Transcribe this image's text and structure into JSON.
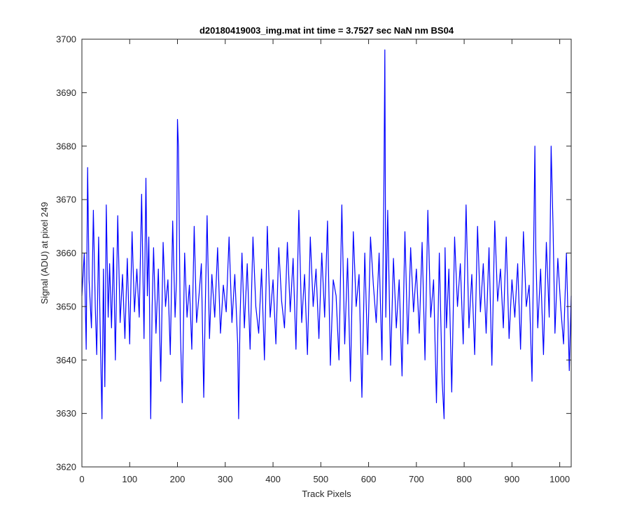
{
  "chart_data": {
    "type": "line",
    "title": "d20180419003_img.mat int time = 3.7527 sec  NaN nm BS04",
    "xlabel": "Track Pixels",
    "ylabel": "Signal (ADU) at pixel 249",
    "xlim": [
      0,
      1024
    ],
    "ylim": [
      3620,
      3700
    ],
    "xticks": [
      0,
      100,
      200,
      300,
      400,
      500,
      600,
      700,
      800,
      900,
      1000
    ],
    "yticks": [
      3620,
      3630,
      3640,
      3650,
      3660,
      3670,
      3680,
      3690,
      3700
    ],
    "grid": false,
    "legend": "none",
    "series": [
      {
        "color": "#0000ff",
        "x": [
          0,
          5,
          9,
          12,
          15,
          20,
          24,
          28,
          31,
          35,
          38,
          42,
          45,
          48,
          51,
          55,
          58,
          62,
          66,
          70,
          75,
          80,
          85,
          90,
          95,
          100,
          105,
          110,
          115,
          120,
          125,
          130,
          134,
          137,
          140,
          144,
          147,
          150,
          155,
          160,
          165,
          170,
          175,
          180,
          185,
          190,
          195,
          198,
          200,
          202,
          206,
          210,
          215,
          220,
          225,
          230,
          235,
          240,
          245,
          250,
          255,
          258,
          262,
          267,
          272,
          278,
          284,
          290,
          296,
          302,
          308,
          314,
          320,
          326,
          328,
          331,
          335,
          340,
          346,
          352,
          358,
          364,
          370,
          376,
          382,
          388,
          394,
          400,
          406,
          412,
          418,
          424,
          430,
          436,
          442,
          448,
          454,
          460,
          466,
          472,
          478,
          484,
          490,
          496,
          502,
          508,
          514,
          520,
          526,
          532,
          538,
          544,
          550,
          556,
          562,
          568,
          574,
          580,
          586,
          592,
          598,
          604,
          610,
          616,
          622,
          628,
          632,
          634,
          636,
          640,
          646,
          652,
          658,
          664,
          670,
          676,
          682,
          688,
          694,
          700,
          706,
          712,
          718,
          724,
          730,
          736,
          742,
          748,
          754,
          758,
          760,
          763,
          768,
          774,
          780,
          786,
          792,
          798,
          804,
          810,
          816,
          822,
          828,
          834,
          840,
          846,
          852,
          858,
          864,
          870,
          876,
          882,
          888,
          894,
          900,
          906,
          912,
          918,
          924,
          930,
          936,
          942,
          948,
          950,
          954,
          960,
          966,
          972,
          978,
          982,
          986,
          990,
          996,
          1002,
          1008,
          1014,
          1020,
          1024
        ],
        "y": [
          3652,
          3660,
          3642,
          3676,
          3655,
          3646,
          3668,
          3650,
          3641,
          3663,
          3647,
          3629,
          3657,
          3635,
          3669,
          3648,
          3658,
          3646,
          3661,
          3640,
          3667,
          3647,
          3656,
          3644,
          3659,
          3643,
          3664,
          3649,
          3657,
          3648,
          3671,
          3644,
          3674,
          3652,
          3663,
          3629,
          3650,
          3661,
          3645,
          3657,
          3636,
          3662,
          3650,
          3655,
          3641,
          3666,
          3648,
          3655,
          3685,
          3680,
          3646,
          3632,
          3660,
          3648,
          3654,
          3642,
          3665,
          3647,
          3652,
          3658,
          3633,
          3649,
          3667,
          3644,
          3656,
          3648,
          3661,
          3645,
          3654,
          3649,
          3663,
          3647,
          3656,
          3643,
          3629,
          3648,
          3660,
          3646,
          3658,
          3642,
          3663,
          3650,
          3645,
          3657,
          3640,
          3665,
          3648,
          3655,
          3643,
          3661,
          3651,
          3646,
          3662,
          3649,
          3659,
          3642,
          3668,
          3647,
          3656,
          3641,
          3663,
          3650,
          3657,
          3644,
          3660,
          3648,
          3666,
          3639,
          3655,
          3652,
          3640,
          3669,
          3643,
          3659,
          3636,
          3664,
          3650,
          3656,
          3633,
          3660,
          3641,
          3663,
          3654,
          3647,
          3660,
          3640,
          3672,
          3698,
          3648,
          3668,
          3639,
          3659,
          3646,
          3655,
          3637,
          3664,
          3643,
          3661,
          3649,
          3657,
          3645,
          3662,
          3640,
          3668,
          3648,
          3655,
          3632,
          3660,
          3636,
          3629,
          3661,
          3646,
          3657,
          3634,
          3663,
          3650,
          3658,
          3643,
          3669,
          3646,
          3656,
          3641,
          3665,
          3649,
          3658,
          3645,
          3661,
          3639,
          3666,
          3651,
          3657,
          3646,
          3663,
          3644,
          3655,
          3648,
          3658,
          3642,
          3664,
          3650,
          3654,
          3636,
          3680,
          3660,
          3646,
          3657,
          3641,
          3662,
          3648,
          3680,
          3665,
          3645,
          3659,
          3650,
          3643,
          3660,
          3638,
          3652
        ]
      }
    ]
  }
}
